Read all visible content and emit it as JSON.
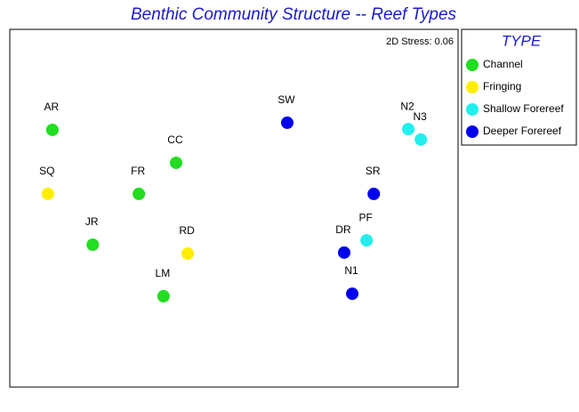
{
  "chart_data": {
    "type": "scatter",
    "title": "Benthic Community Structure -- Reef Types",
    "annotation": "2D Stress: 0.06",
    "legend_title": "TYPE",
    "legend": "right",
    "xlim": [
      0,
      100
    ],
    "ylim": [
      0,
      100
    ],
    "series": [
      {
        "name": "Channel",
        "color": "#22dd22",
        "labels": [
          "AR",
          "JR",
          "FR",
          "CC",
          "LM"
        ],
        "x": [
          9.5,
          18.5,
          28.8,
          37.1,
          34.3
        ],
        "y": [
          71.9,
          39.8,
          54.0,
          62.7,
          25.4
        ]
      },
      {
        "name": "Fringing",
        "color": "#ffee00",
        "labels": [
          "SQ",
          "RD"
        ],
        "x": [
          8.5,
          39.7
        ],
        "y": [
          54.0,
          37.3
        ]
      },
      {
        "name": "Shallow Forereef",
        "color": "#22eeee",
        "labels": [
          "N2",
          "N3",
          "PF"
        ],
        "x": [
          88.9,
          91.7,
          79.6
        ],
        "y": [
          72.1,
          69.2,
          41.0
        ]
      },
      {
        "name": "Deeper Forereef",
        "color": "#0000ee",
        "labels": [
          "SW",
          "SR",
          "DR",
          "N1"
        ],
        "x": [
          61.9,
          81.2,
          74.6,
          76.4
        ],
        "y": [
          73.9,
          54.0,
          37.6,
          26.1
        ]
      }
    ]
  }
}
